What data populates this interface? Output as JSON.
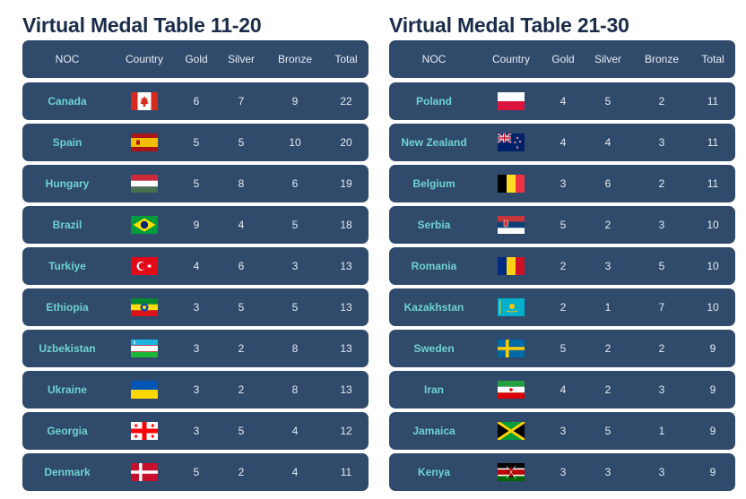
{
  "tables": [
    {
      "title": "Virtual Medal Table 11-20",
      "headers": {
        "noc": "NOC",
        "country": "Country",
        "gold": "Gold",
        "silver": "Silver",
        "bronze": "Bronze",
        "total": "Total"
      },
      "rows": [
        {
          "noc": "Canada",
          "flag": "canada-flag",
          "gold": "6",
          "silver": "7",
          "bronze": "9",
          "total": "22"
        },
        {
          "noc": "Spain",
          "flag": "spain-flag",
          "gold": "5",
          "silver": "5",
          "bronze": "10",
          "total": "20"
        },
        {
          "noc": "Hungary",
          "flag": "hungary-flag",
          "gold": "5",
          "silver": "8",
          "bronze": "6",
          "total": "19"
        },
        {
          "noc": "Brazil",
          "flag": "brazil-flag",
          "gold": "9",
          "silver": "4",
          "bronze": "5",
          "total": "18"
        },
        {
          "noc": "Turkiye",
          "flag": "turkiye-flag",
          "gold": "4",
          "silver": "6",
          "bronze": "3",
          "total": "13"
        },
        {
          "noc": "Ethiopia",
          "flag": "ethiopia-flag",
          "gold": "3",
          "silver": "5",
          "bronze": "5",
          "total": "13"
        },
        {
          "noc": "Uzbekistan",
          "flag": "uzbekistan-flag",
          "gold": "3",
          "silver": "2",
          "bronze": "8",
          "total": "13"
        },
        {
          "noc": "Ukraine",
          "flag": "ukraine-flag",
          "gold": "3",
          "silver": "2",
          "bronze": "8",
          "total": "13"
        },
        {
          "noc": "Georgia",
          "flag": "georgia-flag",
          "gold": "3",
          "silver": "5",
          "bronze": "4",
          "total": "12"
        },
        {
          "noc": "Denmark",
          "flag": "denmark-flag",
          "gold": "5",
          "silver": "2",
          "bronze": "4",
          "total": "11"
        }
      ]
    },
    {
      "title": "Virtual Medal Table 21-30",
      "headers": {
        "noc": "NOC",
        "country": "Country",
        "gold": "Gold",
        "silver": "Silver",
        "bronze": "Bronze",
        "total": "Total"
      },
      "rows": [
        {
          "noc": "Poland",
          "flag": "poland-flag",
          "gold": "4",
          "silver": "5",
          "bronze": "2",
          "total": "11"
        },
        {
          "noc": "New Zealand",
          "flag": "new-zealand-flag",
          "gold": "4",
          "silver": "4",
          "bronze": "3",
          "total": "11"
        },
        {
          "noc": "Belgium",
          "flag": "belgium-flag",
          "gold": "3",
          "silver": "6",
          "bronze": "2",
          "total": "11"
        },
        {
          "noc": "Serbia",
          "flag": "serbia-flag",
          "gold": "5",
          "silver": "2",
          "bronze": "3",
          "total": "10"
        },
        {
          "noc": "Romania",
          "flag": "romania-flag",
          "gold": "2",
          "silver": "3",
          "bronze": "5",
          "total": "10"
        },
        {
          "noc": "Kazakhstan",
          "flag": "kazakhstan-flag",
          "gold": "2",
          "silver": "1",
          "bronze": "7",
          "total": "10"
        },
        {
          "noc": "Sweden",
          "flag": "sweden-flag",
          "gold": "5",
          "silver": "2",
          "bronze": "2",
          "total": "9"
        },
        {
          "noc": "Iran",
          "flag": "iran-flag",
          "gold": "4",
          "silver": "2",
          "bronze": "3",
          "total": "9"
        },
        {
          "noc": "Jamaica",
          "flag": "jamaica-flag",
          "gold": "3",
          "silver": "5",
          "bronze": "1",
          "total": "9"
        },
        {
          "noc": "Kenya",
          "flag": "kenya-flag",
          "gold": "3",
          "silver": "3",
          "bronze": "3",
          "total": "9"
        }
      ]
    }
  ],
  "colors": {
    "title": "#1b2c4a",
    "row_bg": "#2f4a6b",
    "noc_text": "#6fd3d1"
  }
}
